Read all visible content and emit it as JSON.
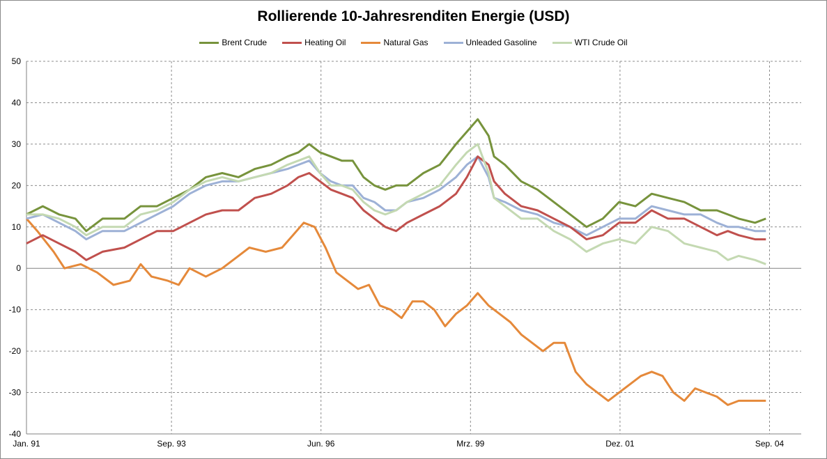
{
  "chart_data": {
    "type": "line",
    "title": "Rollierende 10-Jahresrenditen Energie (USD)",
    "xlabel": "",
    "ylabel": "",
    "ylim": [
      -40,
      50
    ],
    "y_ticks": [
      50,
      40,
      30,
      20,
      10,
      0,
      -10,
      -20,
      -30,
      -40
    ],
    "x_tick_labels": [
      "Jan. 91",
      "Sep. 93",
      "Jun. 96",
      "Mrz. 99",
      "Dez. 01",
      "Sep. 04"
    ],
    "grid": true,
    "legend_position": "top",
    "series": [
      {
        "name": "Brent Crude",
        "color": "#77933C",
        "points": [
          [
            1991.0,
            13
          ],
          [
            1991.3,
            15
          ],
          [
            1991.6,
            13
          ],
          [
            1991.9,
            12
          ],
          [
            1992.1,
            9
          ],
          [
            1992.4,
            12
          ],
          [
            1992.8,
            12
          ],
          [
            1993.1,
            15
          ],
          [
            1993.4,
            15
          ],
          [
            1993.7,
            17
          ],
          [
            1994.0,
            19
          ],
          [
            1994.3,
            22
          ],
          [
            1994.6,
            23
          ],
          [
            1994.9,
            22
          ],
          [
            1995.2,
            24
          ],
          [
            1995.5,
            25
          ],
          [
            1995.8,
            27
          ],
          [
            1996.0,
            28
          ],
          [
            1996.2,
            30
          ],
          [
            1996.4,
            28
          ],
          [
            1996.6,
            27
          ],
          [
            1996.8,
            26
          ],
          [
            1997.0,
            26
          ],
          [
            1997.2,
            22
          ],
          [
            1997.4,
            20
          ],
          [
            1997.6,
            19
          ],
          [
            1997.8,
            20
          ],
          [
            1998.0,
            20
          ],
          [
            1998.3,
            23
          ],
          [
            1998.6,
            25
          ],
          [
            1998.9,
            30
          ],
          [
            1999.1,
            33
          ],
          [
            1999.3,
            36
          ],
          [
            1999.5,
            32
          ],
          [
            1999.6,
            27
          ],
          [
            1999.8,
            25
          ],
          [
            2000.1,
            21
          ],
          [
            2000.4,
            19
          ],
          [
            2000.7,
            16
          ],
          [
            2001.0,
            13
          ],
          [
            2001.3,
            10
          ],
          [
            2001.6,
            12
          ],
          [
            2001.9,
            16
          ],
          [
            2002.2,
            15
          ],
          [
            2002.5,
            18
          ],
          [
            2002.8,
            17
          ],
          [
            2003.1,
            16
          ],
          [
            2003.4,
            14
          ],
          [
            2003.7,
            14
          ],
          [
            2003.9,
            13
          ],
          [
            2004.1,
            12
          ],
          [
            2004.4,
            11
          ],
          [
            2004.6,
            12
          ]
        ]
      },
      {
        "name": "Heating Oil",
        "color": "#C0504D",
        "points": [
          [
            1991.0,
            6
          ],
          [
            1991.3,
            8
          ],
          [
            1991.6,
            6
          ],
          [
            1991.9,
            4
          ],
          [
            1992.1,
            2
          ],
          [
            1992.4,
            4
          ],
          [
            1992.8,
            5
          ],
          [
            1993.1,
            7
          ],
          [
            1993.4,
            9
          ],
          [
            1993.7,
            9
          ],
          [
            1994.0,
            11
          ],
          [
            1994.3,
            13
          ],
          [
            1994.6,
            14
          ],
          [
            1994.9,
            14
          ],
          [
            1995.2,
            17
          ],
          [
            1995.5,
            18
          ],
          [
            1995.8,
            20
          ],
          [
            1996.0,
            22
          ],
          [
            1996.2,
            23
          ],
          [
            1996.4,
            21
          ],
          [
            1996.6,
            19
          ],
          [
            1996.8,
            18
          ],
          [
            1997.0,
            17
          ],
          [
            1997.2,
            14
          ],
          [
            1997.4,
            12
          ],
          [
            1997.6,
            10
          ],
          [
            1997.8,
            9
          ],
          [
            1998.0,
            11
          ],
          [
            1998.3,
            13
          ],
          [
            1998.6,
            15
          ],
          [
            1998.9,
            18
          ],
          [
            1999.1,
            22
          ],
          [
            1999.3,
            27
          ],
          [
            1999.5,
            25
          ],
          [
            1999.6,
            21
          ],
          [
            1999.8,
            18
          ],
          [
            2000.1,
            15
          ],
          [
            2000.4,
            14
          ],
          [
            2000.7,
            12
          ],
          [
            2001.0,
            10
          ],
          [
            2001.3,
            7
          ],
          [
            2001.6,
            8
          ],
          [
            2001.9,
            11
          ],
          [
            2002.2,
            11
          ],
          [
            2002.5,
            14
          ],
          [
            2002.8,
            12
          ],
          [
            2003.1,
            12
          ],
          [
            2003.4,
            10
          ],
          [
            2003.7,
            8
          ],
          [
            2003.9,
            9
          ],
          [
            2004.1,
            8
          ],
          [
            2004.4,
            7
          ],
          [
            2004.6,
            7
          ]
        ]
      },
      {
        "name": "Natural Gas",
        "color": "#E5893A",
        "points": [
          [
            1991.0,
            12
          ],
          [
            1991.2,
            9
          ],
          [
            1991.5,
            4
          ],
          [
            1991.7,
            0
          ],
          [
            1992.0,
            1
          ],
          [
            1992.3,
            -1
          ],
          [
            1992.6,
            -4
          ],
          [
            1992.9,
            -3
          ],
          [
            1993.1,
            1
          ],
          [
            1993.3,
            -2
          ],
          [
            1993.6,
            -3
          ],
          [
            1993.8,
            -4
          ],
          [
            1994.0,
            0
          ],
          [
            1994.3,
            -2
          ],
          [
            1994.6,
            0
          ],
          [
            1994.9,
            3
          ],
          [
            1995.1,
            5
          ],
          [
            1995.4,
            4
          ],
          [
            1995.7,
            5
          ],
          [
            1995.9,
            8
          ],
          [
            1996.1,
            11
          ],
          [
            1996.3,
            10
          ],
          [
            1996.5,
            5
          ],
          [
            1996.7,
            -1
          ],
          [
            1996.9,
            -3
          ],
          [
            1997.1,
            -5
          ],
          [
            1997.3,
            -4
          ],
          [
            1997.5,
            -9
          ],
          [
            1997.7,
            -10
          ],
          [
            1997.9,
            -12
          ],
          [
            1998.1,
            -8
          ],
          [
            1998.3,
            -8
          ],
          [
            1998.5,
            -10
          ],
          [
            1998.7,
            -14
          ],
          [
            1998.9,
            -11
          ],
          [
            1999.1,
            -9
          ],
          [
            1999.3,
            -6
          ],
          [
            1999.5,
            -9
          ],
          [
            1999.7,
            -11
          ],
          [
            1999.9,
            -13
          ],
          [
            2000.1,
            -16
          ],
          [
            2000.3,
            -18
          ],
          [
            2000.5,
            -20
          ],
          [
            2000.7,
            -18
          ],
          [
            2000.9,
            -18
          ],
          [
            2001.1,
            -25
          ],
          [
            2001.3,
            -28
          ],
          [
            2001.5,
            -30
          ],
          [
            2001.7,
            -32
          ],
          [
            2001.9,
            -30
          ],
          [
            2002.1,
            -28
          ],
          [
            2002.3,
            -26
          ],
          [
            2002.5,
            -25
          ],
          [
            2002.7,
            -26
          ],
          [
            2002.9,
            -30
          ],
          [
            2003.1,
            -32
          ],
          [
            2003.3,
            -29
          ],
          [
            2003.5,
            -30
          ],
          [
            2003.7,
            -31
          ],
          [
            2003.9,
            -33
          ],
          [
            2004.1,
            -32
          ],
          [
            2004.4,
            -32
          ],
          [
            2004.6,
            -32
          ]
        ]
      },
      {
        "name": "Unleaded Gasoline",
        "color": "#9DB1D6",
        "points": [
          [
            1991.0,
            12
          ],
          [
            1991.3,
            13
          ],
          [
            1991.6,
            11
          ],
          [
            1991.9,
            9
          ],
          [
            1992.1,
            7
          ],
          [
            1992.4,
            9
          ],
          [
            1992.8,
            9
          ],
          [
            1993.1,
            11
          ],
          [
            1993.4,
            13
          ],
          [
            1993.7,
            15
          ],
          [
            1994.0,
            18
          ],
          [
            1994.3,
            20
          ],
          [
            1994.6,
            21
          ],
          [
            1994.9,
            21
          ],
          [
            1995.2,
            22
          ],
          [
            1995.5,
            23
          ],
          [
            1995.8,
            24
          ],
          [
            1996.0,
            25
          ],
          [
            1996.2,
            26
          ],
          [
            1996.4,
            23
          ],
          [
            1996.6,
            21
          ],
          [
            1996.8,
            20
          ],
          [
            1997.0,
            20
          ],
          [
            1997.2,
            17
          ],
          [
            1997.4,
            16
          ],
          [
            1997.6,
            14
          ],
          [
            1997.8,
            14
          ],
          [
            1998.0,
            16
          ],
          [
            1998.3,
            17
          ],
          [
            1998.6,
            19
          ],
          [
            1998.9,
            22
          ],
          [
            1999.1,
            25
          ],
          [
            1999.3,
            27
          ],
          [
            1999.5,
            22
          ],
          [
            1999.6,
            17
          ],
          [
            1999.8,
            16
          ],
          [
            2000.1,
            14
          ],
          [
            2000.4,
            13
          ],
          [
            2000.7,
            11
          ],
          [
            2001.0,
            10
          ],
          [
            2001.3,
            8
          ],
          [
            2001.6,
            10
          ],
          [
            2001.9,
            12
          ],
          [
            2002.2,
            12
          ],
          [
            2002.5,
            15
          ],
          [
            2002.8,
            14
          ],
          [
            2003.1,
            13
          ],
          [
            2003.4,
            13
          ],
          [
            2003.7,
            11
          ],
          [
            2003.9,
            10
          ],
          [
            2004.1,
            10
          ],
          [
            2004.4,
            9
          ],
          [
            2004.6,
            9
          ]
        ]
      },
      {
        "name": "WTI Crude Oil",
        "color": "#C4D9B2",
        "points": [
          [
            1991.0,
            13
          ],
          [
            1991.3,
            13
          ],
          [
            1991.6,
            12
          ],
          [
            1991.9,
            10
          ],
          [
            1992.1,
            8
          ],
          [
            1992.4,
            10
          ],
          [
            1992.8,
            10
          ],
          [
            1993.1,
            13
          ],
          [
            1993.4,
            14
          ],
          [
            1993.7,
            16
          ],
          [
            1994.0,
            19
          ],
          [
            1994.3,
            21
          ],
          [
            1994.6,
            22
          ],
          [
            1994.9,
            21
          ],
          [
            1995.2,
            22
          ],
          [
            1995.5,
            23
          ],
          [
            1995.8,
            25
          ],
          [
            1996.0,
            26
          ],
          [
            1996.2,
            27
          ],
          [
            1996.4,
            23
          ],
          [
            1996.6,
            20
          ],
          [
            1996.8,
            20
          ],
          [
            1997.0,
            19
          ],
          [
            1997.2,
            16
          ],
          [
            1997.4,
            14
          ],
          [
            1997.6,
            13
          ],
          [
            1997.8,
            14
          ],
          [
            1998.0,
            16
          ],
          [
            1998.3,
            18
          ],
          [
            1998.6,
            20
          ],
          [
            1998.9,
            25
          ],
          [
            1999.1,
            28
          ],
          [
            1999.3,
            30
          ],
          [
            1999.5,
            23
          ],
          [
            1999.6,
            17
          ],
          [
            1999.8,
            15
          ],
          [
            2000.1,
            12
          ],
          [
            2000.4,
            12
          ],
          [
            2000.7,
            9
          ],
          [
            2001.0,
            7
          ],
          [
            2001.3,
            4
          ],
          [
            2001.6,
            6
          ],
          [
            2001.9,
            7
          ],
          [
            2002.2,
            6
          ],
          [
            2002.5,
            10
          ],
          [
            2002.8,
            9
          ],
          [
            2003.1,
            6
          ],
          [
            2003.4,
            5
          ],
          [
            2003.7,
            4
          ],
          [
            2003.9,
            2
          ],
          [
            2004.1,
            3
          ],
          [
            2004.4,
            2
          ],
          [
            2004.6,
            1
          ]
        ]
      }
    ]
  }
}
